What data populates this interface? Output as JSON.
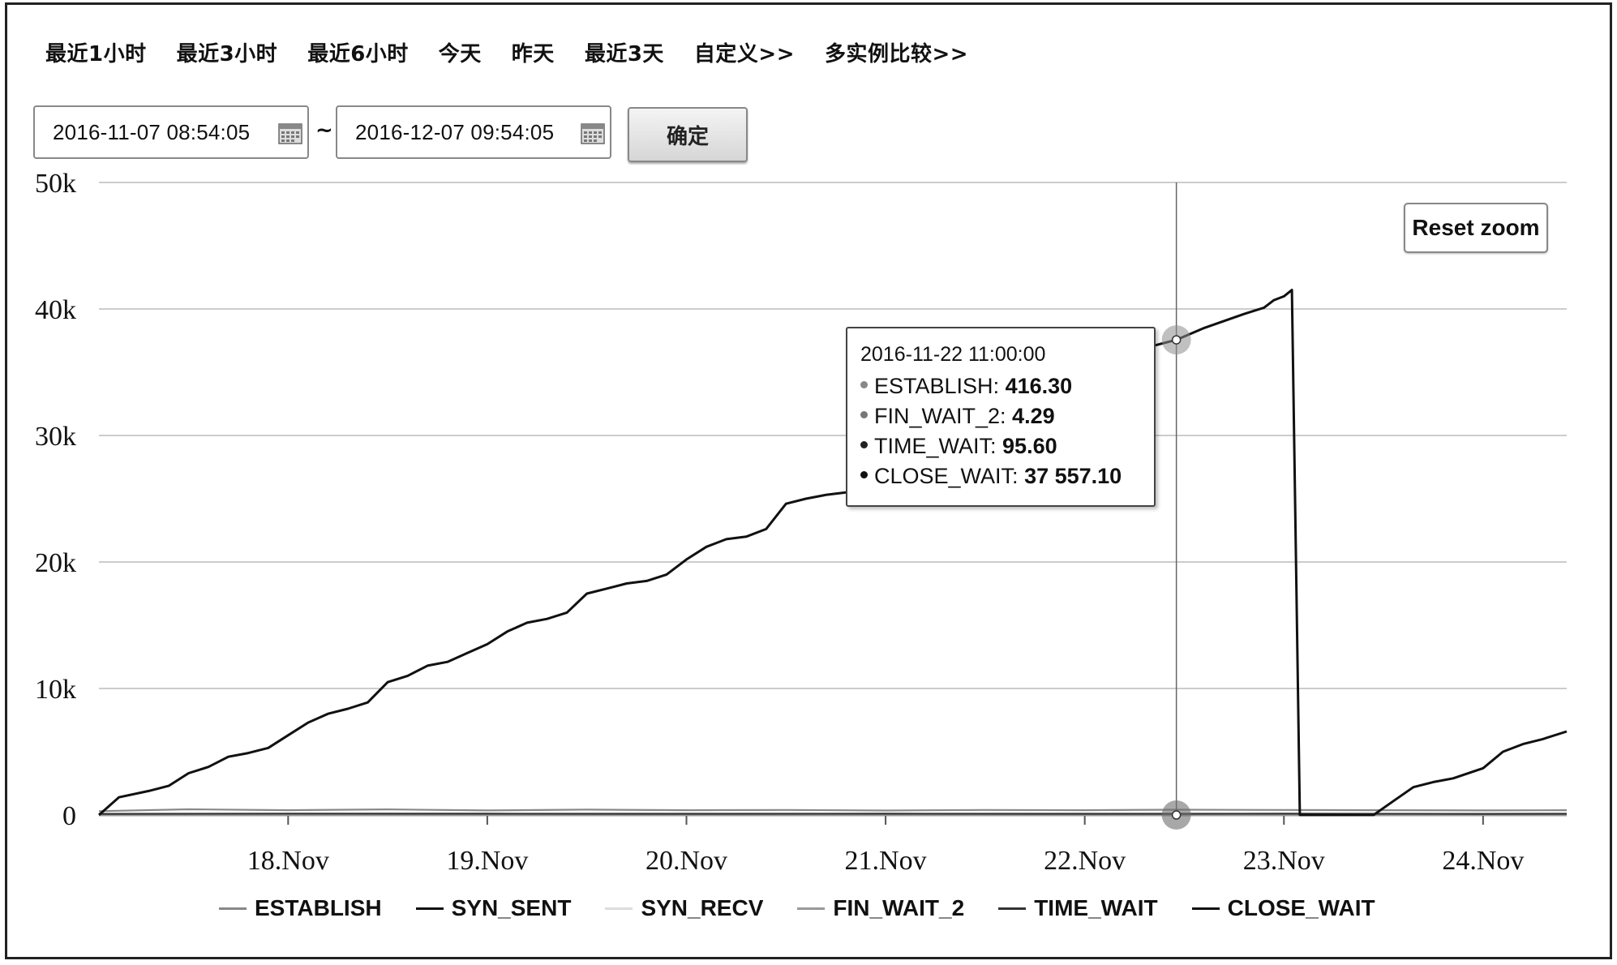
{
  "quick_links": [
    "最近1小时",
    "最近3小时",
    "最近6小时",
    "今天",
    "昨天",
    "最近3天",
    "自定义>>",
    "多实例比较>>"
  ],
  "date_range": {
    "start": "2016-11-07 08:54:05",
    "separator": "~",
    "end": "2016-12-07 09:54:05",
    "confirm_label": "确定"
  },
  "reset_zoom_label": "Reset zoom",
  "tooltip": {
    "time": "2016-11-22 11:00:00",
    "rows": [
      {
        "name": "ESTABLISH",
        "value": "416.30",
        "color": "#888888"
      },
      {
        "name": "FIN_WAIT_2",
        "value": "4.29",
        "color": "#777777"
      },
      {
        "name": "TIME_WAIT",
        "value": "95.60",
        "color": "#222222"
      },
      {
        "name": "CLOSE_WAIT",
        "value": "37 557.10",
        "color": "#111111"
      }
    ]
  },
  "chart_data": {
    "type": "line",
    "ylim": [
      0,
      50000
    ],
    "yticks": [
      0,
      10000,
      20000,
      30000,
      40000,
      50000
    ],
    "ytick_labels": [
      "0",
      "10k",
      "20k",
      "30k",
      "40k",
      "50k"
    ],
    "xlim": [
      17.05,
      24.42
    ],
    "xticks": [
      18,
      19,
      20,
      21,
      22,
      23,
      24
    ],
    "xtick_labels": [
      "18.Nov",
      "19.Nov",
      "20.Nov",
      "21.Nov",
      "22.Nov",
      "23.Nov",
      "24.Nov"
    ],
    "crosshair_x": 22.46,
    "legend_position": "bottom",
    "series": [
      {
        "name": "ESTABLISH",
        "color": "#888888",
        "points": [
          [
            17.05,
            300
          ],
          [
            17.5,
            450
          ],
          [
            18,
            380
          ],
          [
            18.5,
            440
          ],
          [
            19,
            360
          ],
          [
            19.5,
            420
          ],
          [
            20,
            380
          ],
          [
            20.5,
            400
          ],
          [
            21,
            350
          ],
          [
            21.5,
            400
          ],
          [
            22,
            380
          ],
          [
            22.46,
            416
          ],
          [
            23,
            400
          ],
          [
            23.5,
            380
          ],
          [
            24,
            360
          ],
          [
            24.42,
            380
          ]
        ]
      },
      {
        "name": "SYN_SENT",
        "color": "#111111",
        "points": [
          [
            17.05,
            0
          ],
          [
            24.42,
            0
          ]
        ]
      },
      {
        "name": "SYN_RECV",
        "color": "#dddddd",
        "points": [
          [
            17.05,
            0
          ],
          [
            24.42,
            0
          ]
        ]
      },
      {
        "name": "FIN_WAIT_2",
        "color": "#999999",
        "points": [
          [
            17.05,
            5
          ],
          [
            24.42,
            5
          ]
        ]
      },
      {
        "name": "TIME_WAIT",
        "color": "#333333",
        "points": [
          [
            17.05,
            90
          ],
          [
            18,
            110
          ],
          [
            19,
            100
          ],
          [
            20,
            95
          ],
          [
            21,
            105
          ],
          [
            22,
            95
          ],
          [
            22.46,
            96
          ],
          [
            23,
            100
          ],
          [
            24,
            90
          ],
          [
            24.42,
            95
          ]
        ]
      },
      {
        "name": "CLOSE_WAIT",
        "color": "#111111",
        "points": [
          [
            17.05,
            0
          ],
          [
            17.15,
            1400
          ],
          [
            17.3,
            1900
          ],
          [
            17.4,
            2300
          ],
          [
            17.5,
            3300
          ],
          [
            17.6,
            3800
          ],
          [
            17.7,
            4600
          ],
          [
            17.8,
            4900
          ],
          [
            17.9,
            5300
          ],
          [
            18,
            6300
          ],
          [
            18.1,
            7300
          ],
          [
            18.2,
            8000
          ],
          [
            18.3,
            8400
          ],
          [
            18.4,
            8900
          ],
          [
            18.5,
            10500
          ],
          [
            18.6,
            11000
          ],
          [
            18.7,
            11800
          ],
          [
            18.8,
            12100
          ],
          [
            18.9,
            12800
          ],
          [
            19,
            13500
          ],
          [
            19.1,
            14500
          ],
          [
            19.2,
            15200
          ],
          [
            19.3,
            15500
          ],
          [
            19.4,
            16000
          ],
          [
            19.5,
            17500
          ],
          [
            19.6,
            17900
          ],
          [
            19.7,
            18300
          ],
          [
            19.8,
            18500
          ],
          [
            19.9,
            19000
          ],
          [
            20,
            20200
          ],
          [
            20.1,
            21200
          ],
          [
            20.2,
            21800
          ],
          [
            20.3,
            22000
          ],
          [
            20.4,
            22600
          ],
          [
            20.5,
            24600
          ],
          [
            20.6,
            25000
          ],
          [
            20.7,
            25300
          ],
          [
            20.8,
            25500
          ],
          [
            20.9,
            26000
          ],
          [
            21,
            27000
          ],
          [
            21.2,
            28500
          ],
          [
            21.4,
            30500
          ],
          [
            21.6,
            32400
          ],
          [
            21.8,
            34000
          ],
          [
            22,
            35500
          ],
          [
            22.2,
            36500
          ],
          [
            22.46,
            37557
          ],
          [
            22.6,
            38500
          ],
          [
            22.8,
            39600
          ],
          [
            22.9,
            40100
          ],
          [
            22.95,
            40700
          ],
          [
            23.0,
            41000
          ],
          [
            23.04,
            41500
          ],
          [
            23.08,
            0
          ],
          [
            23.45,
            0
          ],
          [
            23.55,
            1100
          ],
          [
            23.65,
            2200
          ],
          [
            23.75,
            2600
          ],
          [
            23.85,
            2900
          ],
          [
            24,
            3700
          ],
          [
            24.1,
            5000
          ],
          [
            24.2,
            5600
          ],
          [
            24.3,
            6000
          ],
          [
            24.42,
            6600
          ]
        ]
      }
    ]
  }
}
